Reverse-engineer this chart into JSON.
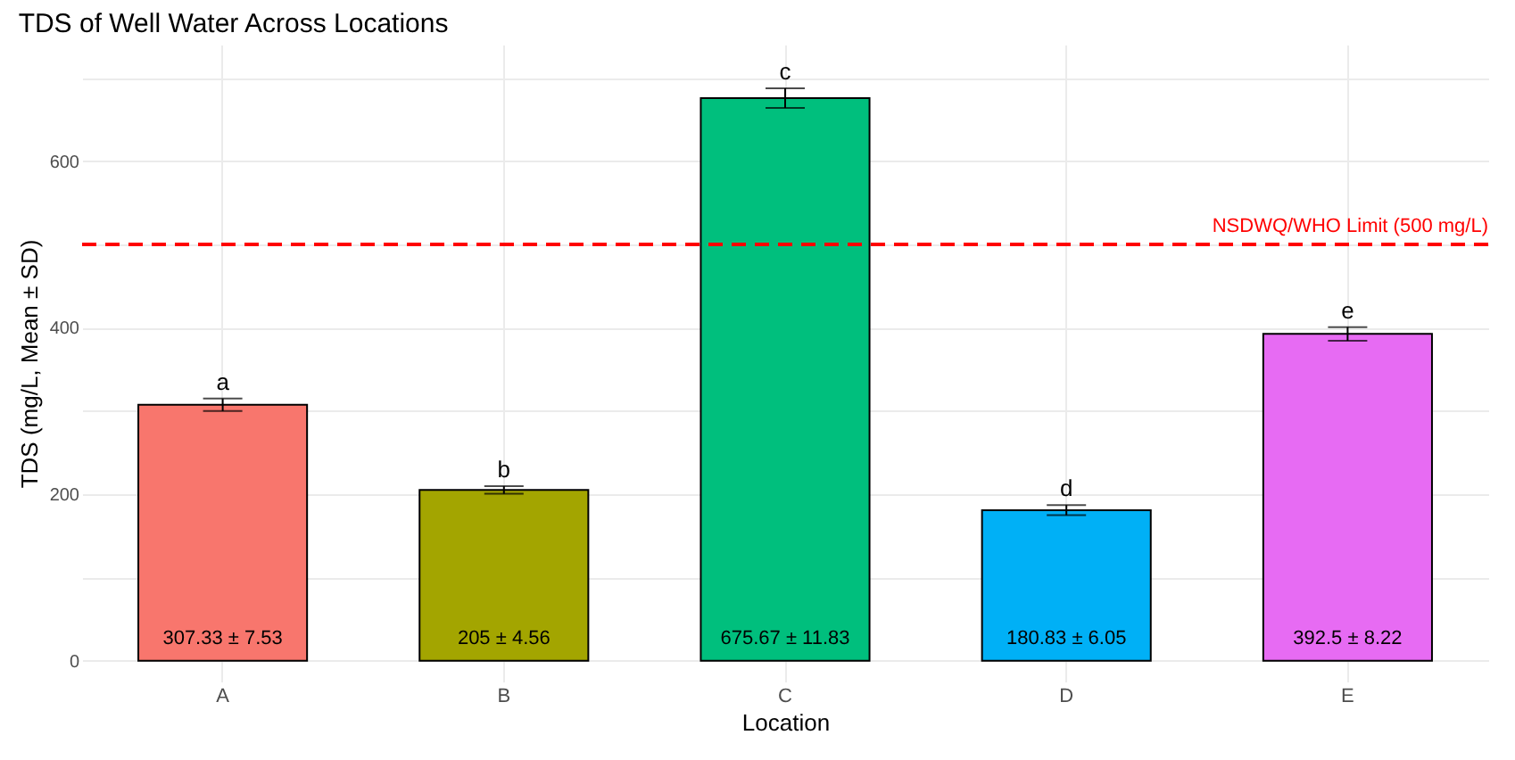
{
  "chart_data": {
    "type": "bar",
    "title": "TDS of Well Water Across Locations",
    "xlabel": "Location",
    "ylabel": "TDS (mg/L, Mean ± SD)",
    "categories": [
      "A",
      "B",
      "C",
      "D",
      "E"
    ],
    "values": [
      307.33,
      205,
      675.67,
      180.83,
      392.5
    ],
    "errors": [
      7.53,
      4.56,
      11.83,
      6.05,
      8.22
    ],
    "colors": [
      "#f8766d",
      "#a3a500",
      "#00bf7d",
      "#00b0f6",
      "#e76bf3"
    ],
    "value_labels": [
      "307.33 ± 7.53",
      "205 ± 4.56",
      "675.67 ± 11.83",
      "180.83 ± 6.05",
      "392.5 ± 8.22"
    ],
    "ylim": [
      -25,
      740
    ],
    "yticks": [
      0,
      {
        "value": 100,
        "label": null
      },
      200,
      {
        "value": 300,
        "label": null
      },
      400,
      {
        "value": 500,
        "label": null
      },
      600,
      {
        "value": 700,
        "label": null
      }
    ],
    "grid": true,
    "ref_lines": [
      {
        "axis": "y",
        "value": 500,
        "label": "NSDWQ/WHO Limit (500 mg/L)",
        "color": "#ff0000",
        "line_style": "dashed"
      }
    ],
    "annotations": [
      {
        "text": "a",
        "x": "A",
        "y": 314.86
      },
      {
        "text": "b",
        "x": "B",
        "y": 209.56
      },
      {
        "text": "c",
        "x": "C",
        "y": 687.5
      },
      {
        "text": "d",
        "x": "D",
        "y": 186.88
      },
      {
        "text": "e",
        "x": "E",
        "y": 400.72
      }
    ]
  }
}
